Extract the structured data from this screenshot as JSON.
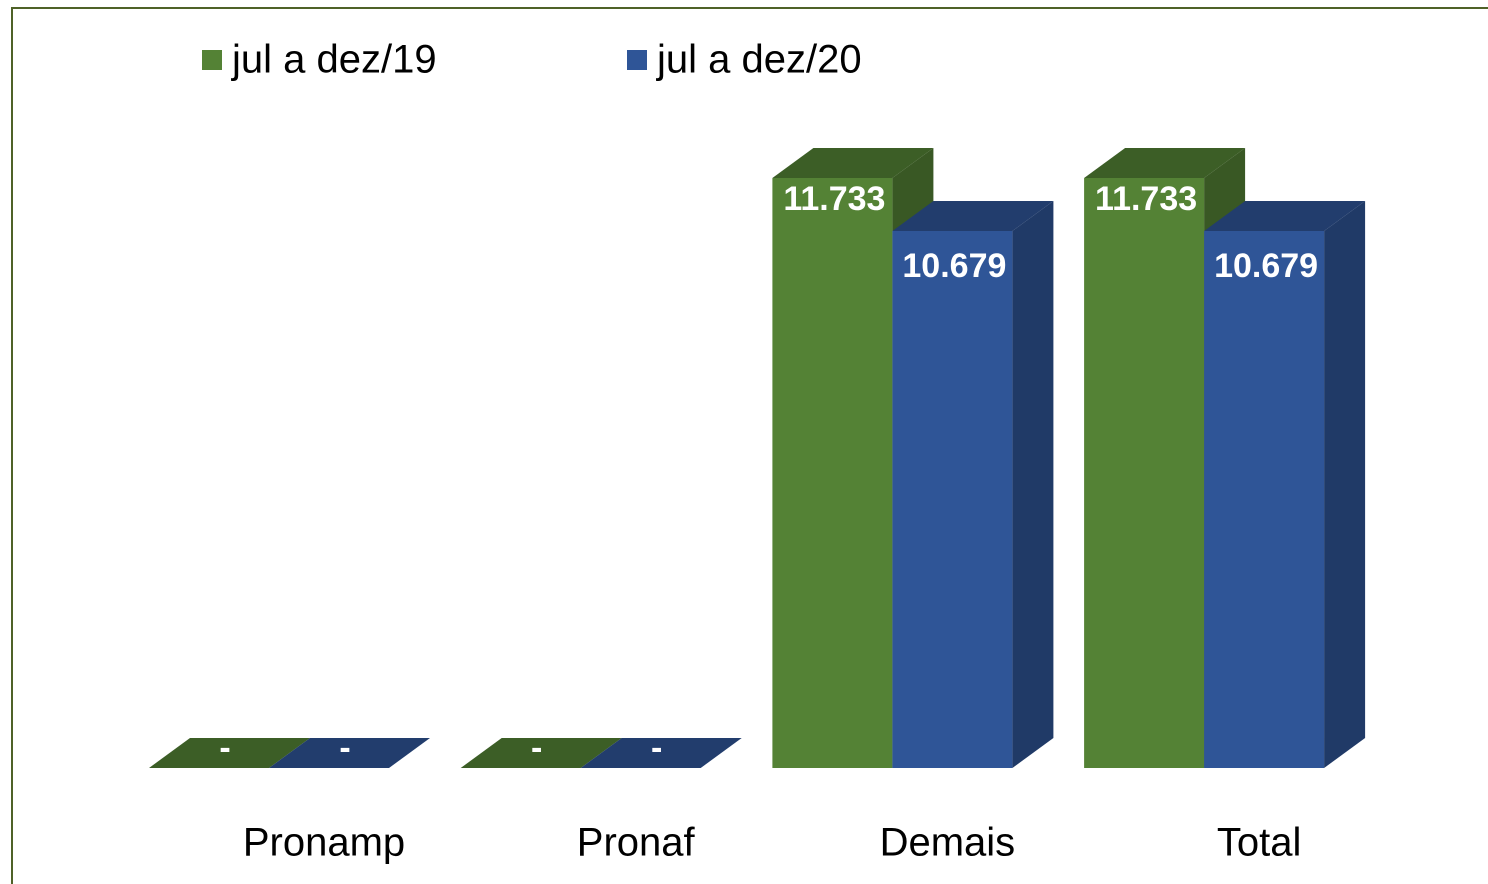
{
  "chart_data": {
    "type": "bar3d",
    "categories": [
      "Pronamp",
      "Pronaf",
      "Demais",
      "Total"
    ],
    "series": [
      {
        "name": "jul a dez/19",
        "color": "#548235",
        "values": [
          0,
          0,
          11733,
          11733
        ],
        "value_labels": [
          "-",
          "-",
          "11.733",
          "11.733"
        ]
      },
      {
        "name": "jul a dez/20",
        "color": "#2f5597",
        "values": [
          0,
          0,
          10679,
          10679
        ],
        "value_labels": [
          "-",
          "-",
          "10.679",
          "10.679"
        ]
      }
    ],
    "legend": "top"
  }
}
